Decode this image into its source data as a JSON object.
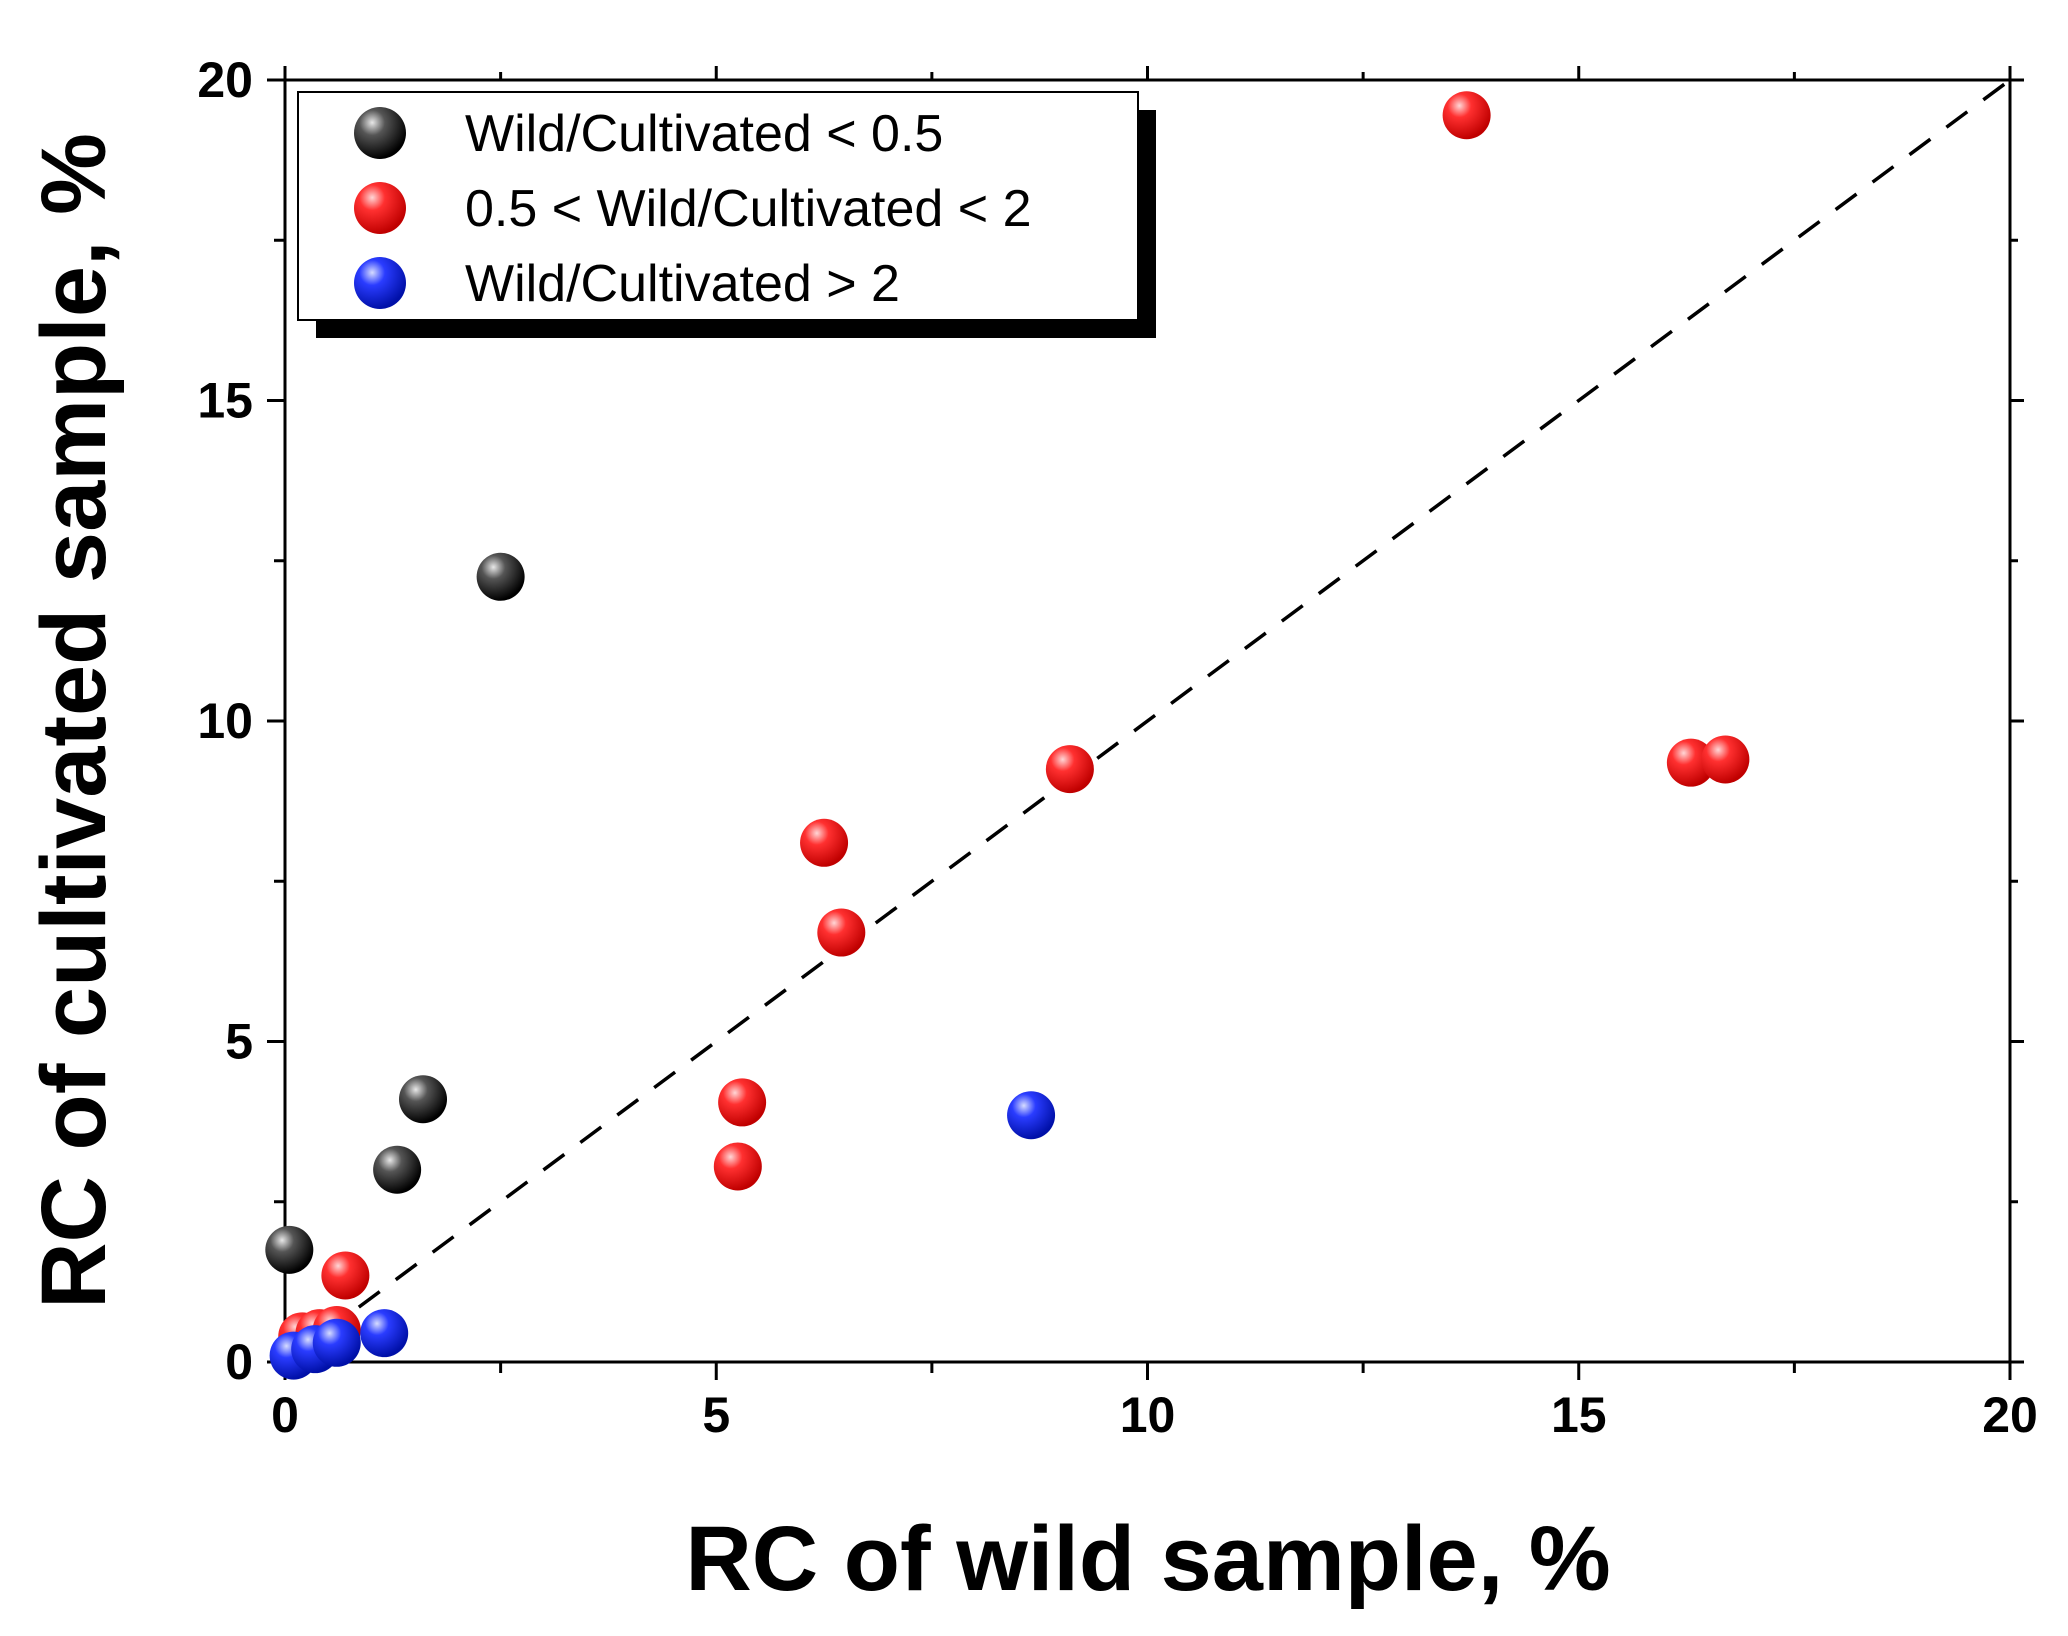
{
  "chart_data": {
    "type": "scatter",
    "title": "",
    "xlabel": "RC of wild sample, %",
    "ylabel": "RC of cultivated sample, %",
    "xlim": [
      0,
      20
    ],
    "ylim": [
      0,
      20
    ],
    "xticks": [
      "0",
      "5",
      "10",
      "15",
      "20"
    ],
    "yticks": [
      "0",
      "5",
      "10",
      "15",
      "20"
    ],
    "grid": false,
    "legend_position": "top-left",
    "reference_line": {
      "style": "dashed",
      "from": [
        0,
        0
      ],
      "to": [
        20,
        20
      ]
    },
    "series": [
      {
        "name": "Wild/Cultivated < 0.5",
        "color": "#111111",
        "points": [
          [
            0.05,
            1.75
          ],
          [
            1.3,
            3.0
          ],
          [
            1.6,
            4.1
          ],
          [
            2.5,
            12.25
          ]
        ]
      },
      {
        "name": "0.5 < Wild/Cultivated < 2",
        "color": "#ee1111",
        "points": [
          [
            0.2,
            0.4
          ],
          [
            0.4,
            0.45
          ],
          [
            0.6,
            0.5
          ],
          [
            0.7,
            1.35
          ],
          [
            5.25,
            3.05
          ],
          [
            5.3,
            4.05
          ],
          [
            6.25,
            8.1
          ],
          [
            6.45,
            6.7
          ],
          [
            9.1,
            9.25
          ],
          [
            13.7,
            19.45
          ],
          [
            16.3,
            9.35
          ],
          [
            16.7,
            9.4
          ]
        ]
      },
      {
        "name": "Wild/Cultivated > 2",
        "color": "#1122ee",
        "points": [
          [
            0.1,
            0.1
          ],
          [
            0.35,
            0.2
          ],
          [
            0.6,
            0.3
          ],
          [
            1.15,
            0.45
          ],
          [
            8.65,
            3.85
          ]
        ]
      }
    ]
  }
}
